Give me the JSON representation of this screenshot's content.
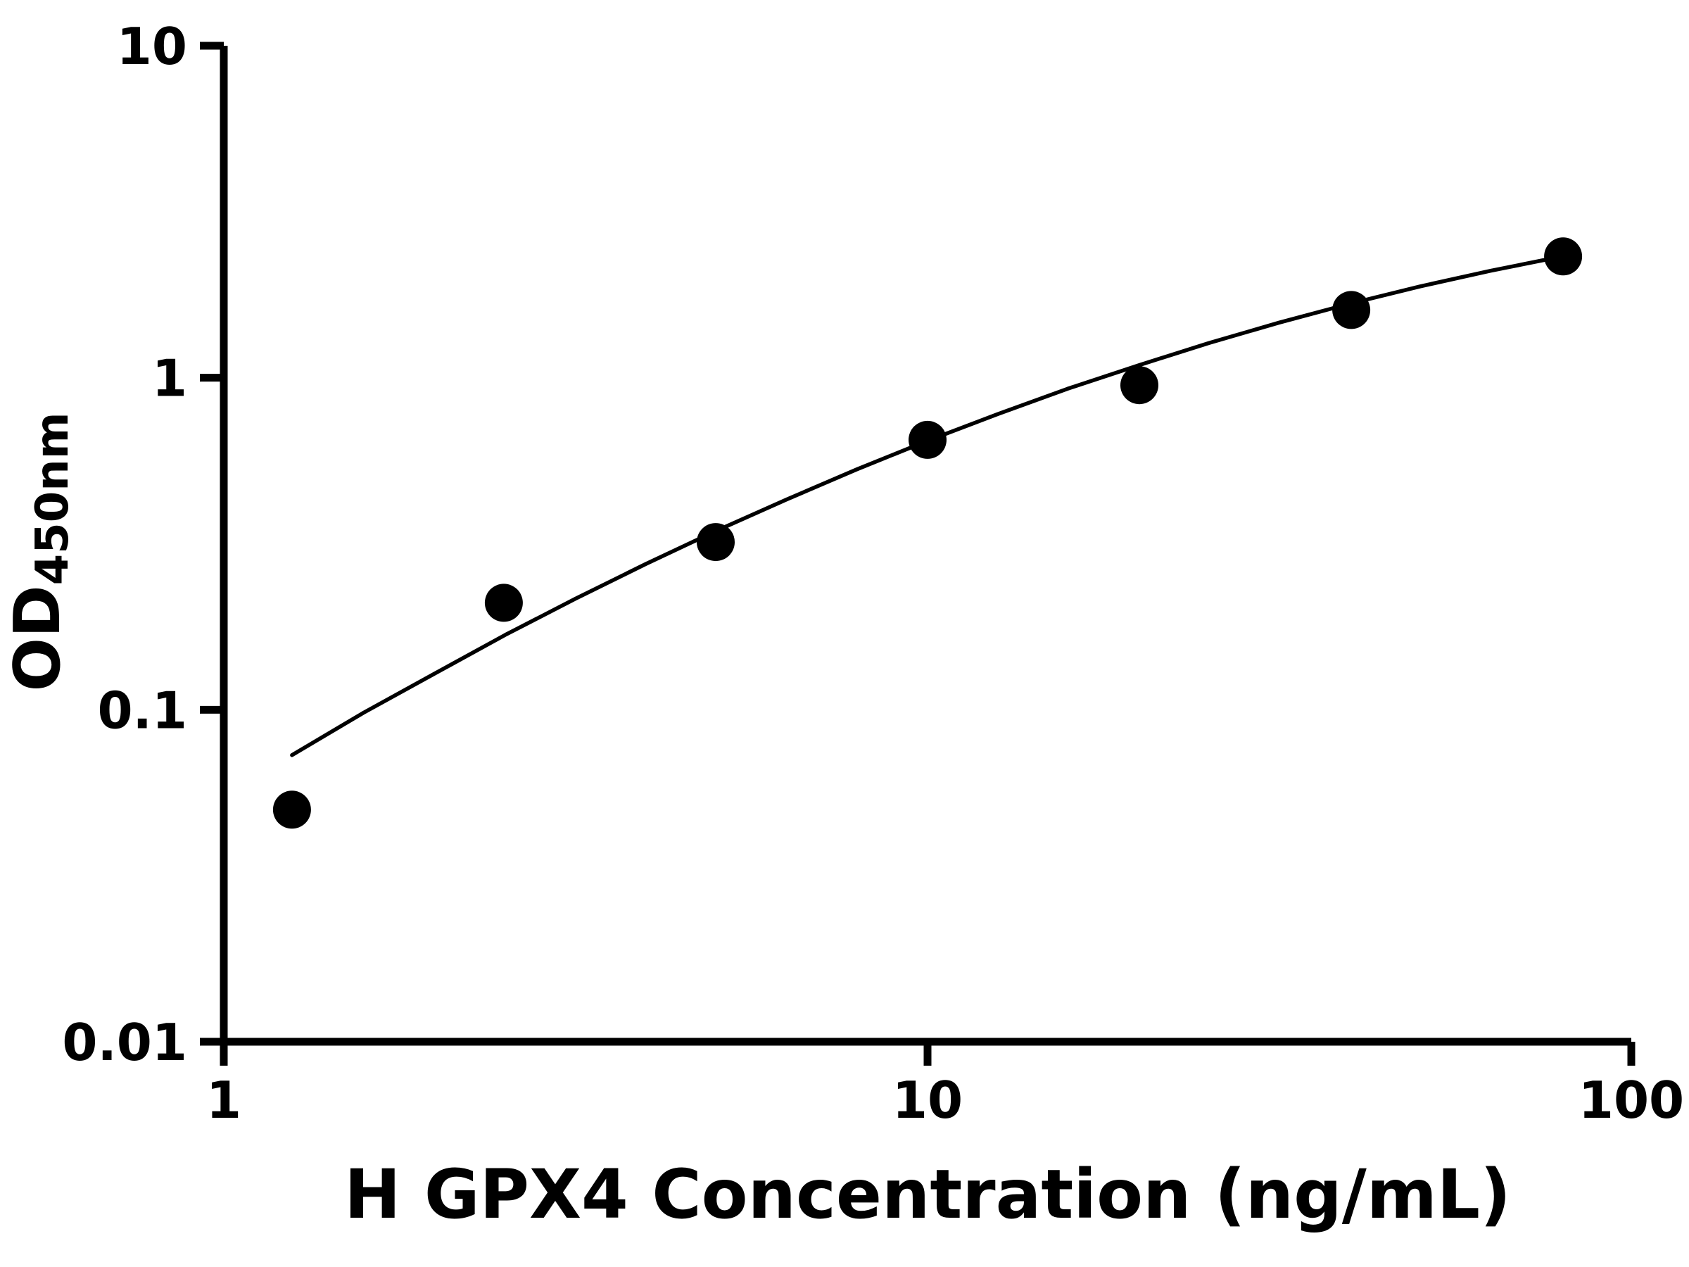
{
  "chart_data": {
    "type": "scatter",
    "title": "",
    "xlabel": "H GPX4 Concentration (ng/mL)",
    "ylabel": "OD",
    "ylabel_subscript": "450nm",
    "x_scale": "log",
    "y_scale": "log",
    "xlim": [
      1,
      100
    ],
    "ylim": [
      0.01,
      10
    ],
    "x_ticks": [
      1,
      10,
      100
    ],
    "x_tick_labels": [
      "1",
      "10",
      "100"
    ],
    "y_ticks": [
      0.01,
      0.1,
      1,
      10
    ],
    "y_tick_labels": [
      "0.01",
      "0.1",
      "1",
      "10"
    ],
    "grid": false,
    "legend_position": "none",
    "colors": {
      "marker": "#000000",
      "line": "#000000",
      "axis": "#000000",
      "background": "#ffffff"
    },
    "series": [
      {
        "name": "standard-points",
        "kind": "scatter",
        "marker": "circle",
        "x": [
          1.25,
          2.5,
          5,
          10,
          20,
          40,
          80
        ],
        "y": [
          0.05,
          0.21,
          0.32,
          0.65,
          0.95,
          1.6,
          2.32
        ]
      },
      {
        "name": "fit-curve",
        "kind": "line",
        "x": [
          1.25,
          1.58,
          2.0,
          2.51,
          3.16,
          3.98,
          5.01,
          6.31,
          7.94,
          10.0,
          12.6,
          15.8,
          20.0,
          25.1,
          31.6,
          39.8,
          50.1,
          63.1,
          80.0
        ],
        "y": [
          0.073,
          0.098,
          0.129,
          0.168,
          0.216,
          0.275,
          0.346,
          0.43,
          0.53,
          0.646,
          0.778,
          0.926,
          1.092,
          1.272,
          1.466,
          1.671,
          1.884,
          2.1,
          2.323
        ]
      }
    ]
  }
}
